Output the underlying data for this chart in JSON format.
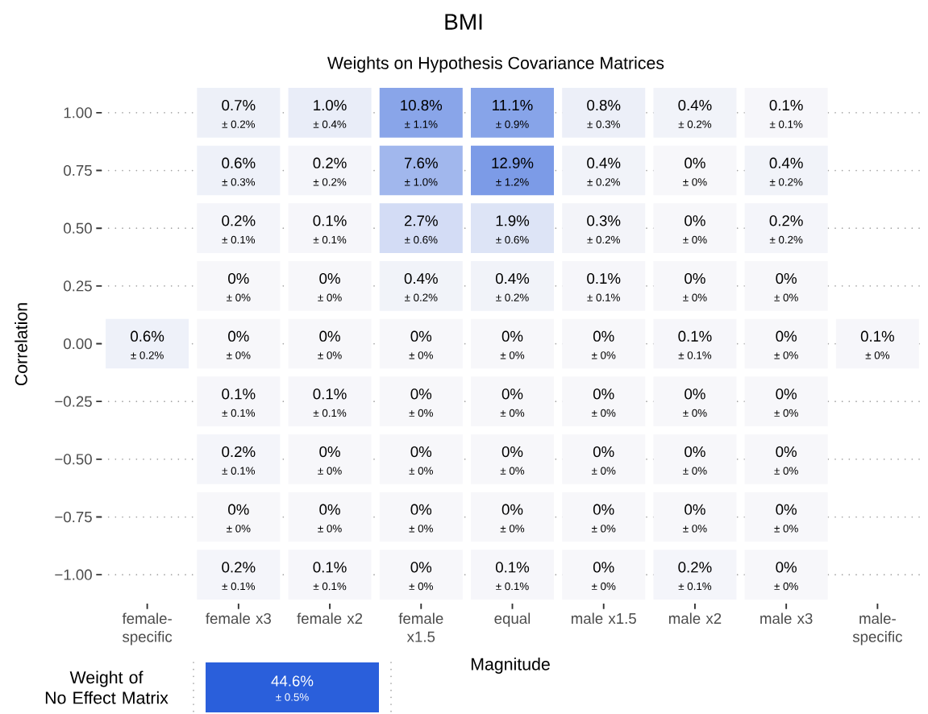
{
  "chart_data": [
    {
      "type": "heatmap",
      "title": "BMI",
      "subtitle": "Weights on Hypothesis Covariance Matrices",
      "xlabel": "Magnitude",
      "ylabel": "Correlation",
      "categories": [
        "female-specific",
        "female x3",
        "female x2",
        "female x1.5",
        "equal",
        "male x1.5",
        "male x2",
        "male x3",
        "male-specific"
      ],
      "y_categories": [
        "1.00",
        "0.75",
        "0.50",
        "0.25",
        "0.00",
        "−0.25",
        "−0.50",
        "−0.75",
        "−1.00"
      ],
      "cells": [
        [
          null,
          0.7,
          1.0,
          10.8,
          11.1,
          0.8,
          0.4,
          0.1,
          null
        ],
        [
          null,
          0.6,
          0.2,
          7.6,
          12.9,
          0.4,
          0,
          0.4,
          null
        ],
        [
          null,
          0.2,
          0.1,
          2.7,
          1.9,
          0.3,
          0,
          0.2,
          null
        ],
        [
          null,
          0,
          0,
          0.4,
          0.4,
          0.1,
          0,
          0,
          null
        ],
        [
          0.6,
          0,
          0,
          0,
          0,
          0,
          0.1,
          0,
          0.1
        ],
        [
          null,
          0.1,
          0.1,
          0,
          0,
          0,
          0,
          0,
          null
        ],
        [
          null,
          0.2,
          0,
          0,
          0,
          0,
          0,
          0,
          null
        ],
        [
          null,
          0,
          0,
          0,
          0,
          0,
          0,
          0,
          null
        ],
        [
          null,
          0.2,
          0.1,
          0,
          0.1,
          0,
          0.2,
          0,
          null
        ]
      ],
      "cell_labels": [
        [
          null,
          "0.7%",
          "1.0%",
          "10.8%",
          "11.1%",
          "0.8%",
          "0.4%",
          "0.1%",
          null
        ],
        [
          null,
          "0.6%",
          "0.2%",
          "7.6%",
          "12.9%",
          "0.4%",
          "0%",
          "0.4%",
          null
        ],
        [
          null,
          "0.2%",
          "0.1%",
          "2.7%",
          "1.9%",
          "0.3%",
          "0%",
          "0.2%",
          null
        ],
        [
          null,
          "0%",
          "0%",
          "0.4%",
          "0.4%",
          "0.1%",
          "0%",
          "0%",
          null
        ],
        [
          "0.6%",
          "0%",
          "0%",
          "0%",
          "0%",
          "0%",
          "0.1%",
          "0%",
          "0.1%"
        ],
        [
          null,
          "0.1%",
          "0.1%",
          "0%",
          "0%",
          "0%",
          "0%",
          "0%",
          null
        ],
        [
          null,
          "0.2%",
          "0%",
          "0%",
          "0%",
          "0%",
          "0%",
          "0%",
          null
        ],
        [
          null,
          "0%",
          "0%",
          "0%",
          "0%",
          "0%",
          "0%",
          "0%",
          null
        ],
        [
          null,
          "0.2%",
          "0.1%",
          "0%",
          "0.1%",
          "0%",
          "0.2%",
          "0%",
          null
        ]
      ],
      "annotations": [
        "± 0.2%",
        "± 0.4%",
        "± 1.1%",
        "± 0.9%",
        "± 0.3%",
        "± 0.2%",
        "± 0.1%",
        "± 0.3%",
        "± 0.2%",
        "± 1.0%",
        "± 1.2%",
        "± 0.2%",
        "± 0%",
        "± 0.2%",
        "± 0.1%",
        "± 0.1%",
        "± 0.6%",
        "± 0.6%",
        "± 0.2%",
        "± 0%",
        "± 0.2%",
        "± 0%",
        "± 0%",
        "± 0.2%",
        "± 0.2%",
        "± 0.1%",
        "± 0%",
        "± 0%",
        "± 0.2%",
        "± 0%",
        "± 0%",
        "± 0%",
        "± 0%",
        "± 0%",
        "± 0.1%",
        "± 0%",
        "± 0%",
        "± 0.1%",
        "± 0.1%",
        "± 0%",
        "± 0%",
        "± 0%",
        "± 0%",
        "± 0%",
        "± 0.1%",
        "± 0%",
        "± 0%",
        "± 0%",
        "± 0%",
        "± 0%",
        "± 0%",
        "± 0%",
        "± 0%",
        "± 0%",
        "± 0%",
        "± 0%",
        "± 0%",
        "± 0%",
        "± 0.1%",
        "± 0.1%",
        "± 0%",
        "± 0.1%",
        "± 0%",
        "± 0.1%",
        "± 0%"
      ],
      "grid": "y"
    },
    {
      "type": "other",
      "categories": [
        "Weight of No Effect Matrix"
      ],
      "values": [
        44.6
      ],
      "value_labels": [
        "44.6%"
      ],
      "color": "#2a5fdb",
      "annotations": [
        "± 0.5%"
      ]
    }
  ]
}
